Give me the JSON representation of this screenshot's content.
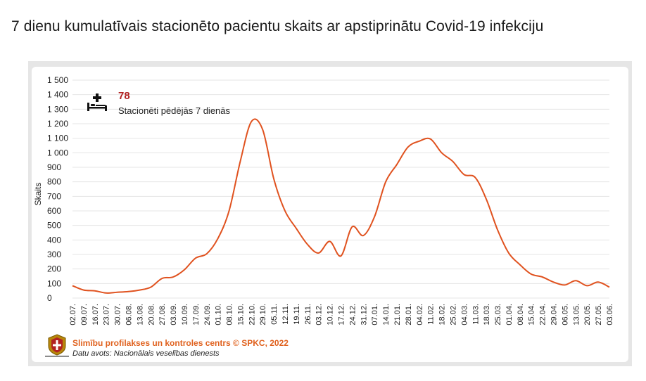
{
  "header": {
    "title": "7 dienu kumulatīvais stacionēto pacientu skaits ar apstiprinātu Covid-19 infekciju"
  },
  "kpi": {
    "value": "78",
    "label": "Stacionēti pēdējās 7 dienās",
    "icon": "hospital-bed-icon"
  },
  "footer": {
    "credit": "Slimību profilakses un kontroles centrs © SPKC, 2022",
    "source": "Datu avots: Nacionālais veselības dienests",
    "logo": "spkc-logo-icon"
  },
  "chart_data": {
    "type": "line",
    "ylabel": "Skaits",
    "ylim": [
      0,
      1500
    ],
    "yticks": [
      0,
      100,
      200,
      300,
      400,
      500,
      600,
      700,
      800,
      900,
      1000,
      1100,
      1200,
      1300,
      1400,
      1500
    ],
    "ytick_labels": [
      "0",
      "100",
      "200",
      "300",
      "400",
      "500",
      "600",
      "700",
      "800",
      "900",
      "1 000",
      "1 100",
      "1 200",
      "1 300",
      "1 400",
      "1 500"
    ],
    "xtick_labels": [
      "02.07.",
      "09.07.",
      "16.07.",
      "23.07.",
      "30.07.",
      "06.08.",
      "13.08.",
      "20.08.",
      "27.08.",
      "03.09.",
      "10.09.",
      "17.09.",
      "24.09.",
      "01.10.",
      "08.10.",
      "15.10.",
      "22.10.",
      "29.10.",
      "05.11.",
      "12.11.",
      "19.11.",
      "26.11.",
      "03.12.",
      "10.12.",
      "17.12.",
      "24.12.",
      "31.12.",
      "07.01.",
      "14.01.",
      "21.01.",
      "28.01.",
      "04.02.",
      "11.02.",
      "18.02.",
      "25.02.",
      "04.03.",
      "11.03.",
      "18.03.",
      "25.03.",
      "01.04.",
      "08.04.",
      "15.04.",
      "22.04.",
      "29.04.",
      "06.05.",
      "13.05.",
      "20.05.",
      "27.05.",
      "03.06."
    ],
    "grid": true,
    "line_color": "#e0521f",
    "series": [
      {
        "x": [
          "02.07.",
          "09.07.",
          "16.07.",
          "23.07.",
          "30.07.",
          "06.08.",
          "13.08.",
          "20.08.",
          "27.08.",
          "03.09.",
          "10.09.",
          "17.09.",
          "24.09.",
          "01.10.",
          "08.10.",
          "15.10.",
          "22.10.",
          "29.10.",
          "05.11.",
          "12.11.",
          "19.11.",
          "26.11.",
          "03.12.",
          "10.12.",
          "17.12.",
          "24.12.",
          "31.12.",
          "07.01.",
          "14.01.",
          "21.01.",
          "28.01.",
          "04.02.",
          "11.02.",
          "18.02.",
          "25.02.",
          "04.03.",
          "11.03.",
          "18.03.",
          "25.03.",
          "01.04.",
          "08.04.",
          "15.04.",
          "22.04.",
          "29.04.",
          "06.05.",
          "13.05.",
          "20.05.",
          "27.05.",
          "03.06."
        ],
        "values": [
          85,
          55,
          50,
          35,
          40,
          45,
          55,
          75,
          135,
          145,
          195,
          275,
          305,
          410,
          600,
          940,
          1215,
          1160,
          820,
          600,
          480,
          370,
          310,
          390,
          290,
          490,
          430,
          560,
          800,
          920,
          1040,
          1080,
          1095,
          1000,
          940,
          850,
          830,
          680,
          470,
          310,
          230,
          165,
          145,
          110,
          90,
          120,
          85,
          110,
          75
        ]
      }
    ]
  }
}
